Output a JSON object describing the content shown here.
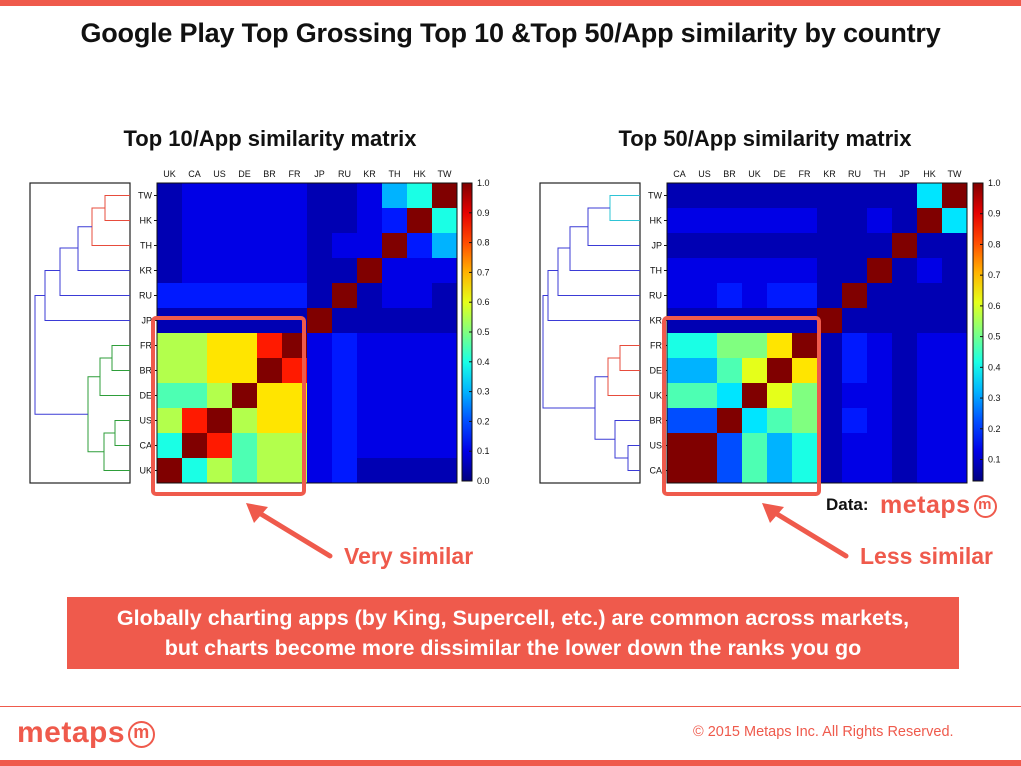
{
  "page": {
    "title": "Google Play Top Grossing Top 10 &Top 50/App similarity by country",
    "source_label": "Data:",
    "logo_text": "metaps",
    "logo_mark": "m",
    "banner_line1": "Globally charting apps (by King, Supercell, etc.) are common across markets,",
    "banner_line2": "but charts become more dissimilar the lower down the ranks you go",
    "copyright": "© 2015 Metaps Inc. All Rights Reserved.",
    "accent_color": "#ef5a4c"
  },
  "chart_data": [
    {
      "type": "heatmap",
      "title": "Top 10/App similarity matrix",
      "x_labels": [
        "UK",
        "CA",
        "US",
        "DE",
        "BR",
        "FR",
        "JP",
        "RU",
        "KR",
        "TH",
        "HK",
        "TW"
      ],
      "y_labels": [
        "TW",
        "HK",
        "TH",
        "KR",
        "RU",
        "JP",
        "FR",
        "BR",
        "DE",
        "US",
        "CA",
        "UK"
      ],
      "values": [
        [
          0.05,
          0.1,
          0.1,
          0.1,
          0.1,
          0.1,
          0.05,
          0.05,
          0.1,
          0.3,
          0.4,
          1.0
        ],
        [
          0.05,
          0.1,
          0.1,
          0.1,
          0.1,
          0.1,
          0.05,
          0.05,
          0.1,
          0.15,
          1.0,
          0.4
        ],
        [
          0.05,
          0.1,
          0.1,
          0.1,
          0.1,
          0.1,
          0.05,
          0.1,
          0.1,
          1.0,
          0.15,
          0.3
        ],
        [
          0.05,
          0.1,
          0.1,
          0.1,
          0.1,
          0.1,
          0.05,
          0.05,
          1.0,
          0.1,
          0.1,
          0.1
        ],
        [
          0.15,
          0.15,
          0.15,
          0.15,
          0.15,
          0.15,
          0.05,
          1.0,
          0.05,
          0.1,
          0.1,
          0.05
        ],
        [
          0.05,
          0.05,
          0.05,
          0.05,
          0.05,
          0.05,
          1.0,
          0.05,
          0.05,
          0.05,
          0.05,
          0.05
        ],
        [
          0.55,
          0.55,
          0.65,
          0.65,
          0.85,
          1.0,
          0.1,
          0.15,
          0.1,
          0.1,
          0.1,
          0.1
        ],
        [
          0.55,
          0.55,
          0.65,
          0.65,
          1.0,
          0.85,
          0.1,
          0.15,
          0.1,
          0.1,
          0.1,
          0.1
        ],
        [
          0.45,
          0.45,
          0.55,
          1.0,
          0.65,
          0.65,
          0.1,
          0.15,
          0.1,
          0.1,
          0.1,
          0.1
        ],
        [
          0.55,
          0.85,
          1.0,
          0.55,
          0.65,
          0.65,
          0.1,
          0.15,
          0.1,
          0.1,
          0.1,
          0.1
        ],
        [
          0.4,
          1.0,
          0.85,
          0.45,
          0.55,
          0.55,
          0.1,
          0.15,
          0.1,
          0.1,
          0.1,
          0.1
        ],
        [
          1.0,
          0.4,
          0.55,
          0.45,
          0.55,
          0.55,
          0.1,
          0.15,
          0.05,
          0.05,
          0.05,
          0.05
        ]
      ],
      "colorbar_ticks": [
        "1.0",
        "0.9",
        "0.8",
        "0.7",
        "0.6",
        "0.5",
        "0.4",
        "0.3",
        "0.2",
        "0.1",
        "0.0"
      ],
      "highlight": {
        "rows": [
          "FR",
          "BR",
          "DE",
          "US",
          "CA",
          "UK"
        ],
        "cols": [
          "UK",
          "CA",
          "US",
          "DE",
          "BR",
          "FR"
        ]
      },
      "callout": "Very similar"
    },
    {
      "type": "heatmap",
      "title": "Top 50/App similarity matrix",
      "x_labels": [
        "CA",
        "US",
        "BR",
        "UK",
        "DE",
        "FR",
        "KR",
        "RU",
        "TH",
        "JP",
        "HK",
        "TW"
      ],
      "y_labels": [
        "TW",
        "HK",
        "JP",
        "TH",
        "RU",
        "KR",
        "FR",
        "DE",
        "UK",
        "BR",
        "US",
        "CA"
      ],
      "values": [
        [
          0.05,
          0.05,
          0.05,
          0.05,
          0.05,
          0.05,
          0.05,
          0.05,
          0.05,
          0.05,
          0.35,
          1.0
        ],
        [
          0.1,
          0.1,
          0.1,
          0.1,
          0.1,
          0.1,
          0.05,
          0.05,
          0.1,
          0.05,
          1.0,
          0.35
        ],
        [
          0.05,
          0.05,
          0.05,
          0.05,
          0.05,
          0.05,
          0.05,
          0.05,
          0.05,
          1.0,
          0.05,
          0.05
        ],
        [
          0.1,
          0.1,
          0.1,
          0.1,
          0.1,
          0.1,
          0.05,
          0.05,
          1.0,
          0.05,
          0.1,
          0.05
        ],
        [
          0.1,
          0.1,
          0.15,
          0.1,
          0.15,
          0.15,
          0.05,
          1.0,
          0.05,
          0.05,
          0.05,
          0.05
        ],
        [
          0.05,
          0.05,
          0.05,
          0.05,
          0.05,
          0.05,
          1.0,
          0.05,
          0.05,
          0.05,
          0.05,
          0.05
        ],
        [
          0.4,
          0.4,
          0.5,
          0.5,
          0.65,
          1.0,
          0.05,
          0.15,
          0.1,
          0.05,
          0.1,
          0.1
        ],
        [
          0.3,
          0.3,
          0.45,
          0.6,
          1.0,
          0.65,
          0.05,
          0.15,
          0.1,
          0.05,
          0.1,
          0.1
        ],
        [
          0.45,
          0.45,
          0.35,
          1.0,
          0.6,
          0.5,
          0.05,
          0.1,
          0.1,
          0.05,
          0.1,
          0.1
        ],
        [
          0.2,
          0.2,
          1.0,
          0.35,
          0.45,
          0.5,
          0.05,
          0.15,
          0.1,
          0.05,
          0.1,
          0.1
        ],
        [
          1.0,
          1.0,
          0.2,
          0.45,
          0.3,
          0.4,
          0.05,
          0.1,
          0.1,
          0.05,
          0.1,
          0.1
        ],
        [
          1.0,
          1.0,
          0.2,
          0.45,
          0.3,
          0.4,
          0.05,
          0.1,
          0.1,
          0.05,
          0.1,
          0.1
        ]
      ],
      "colorbar_ticks": [
        "1.0",
        "0.9",
        "0.8",
        "0.7",
        "0.6",
        "0.5",
        "0.4",
        "0.3",
        "0.2",
        "0.1"
      ],
      "highlight": {
        "rows": [
          "FR",
          "DE",
          "UK",
          "BR",
          "US",
          "CA"
        ],
        "cols": [
          "CA",
          "US",
          "BR",
          "UK",
          "DE",
          "FR"
        ]
      },
      "callout": "Less similar"
    }
  ]
}
